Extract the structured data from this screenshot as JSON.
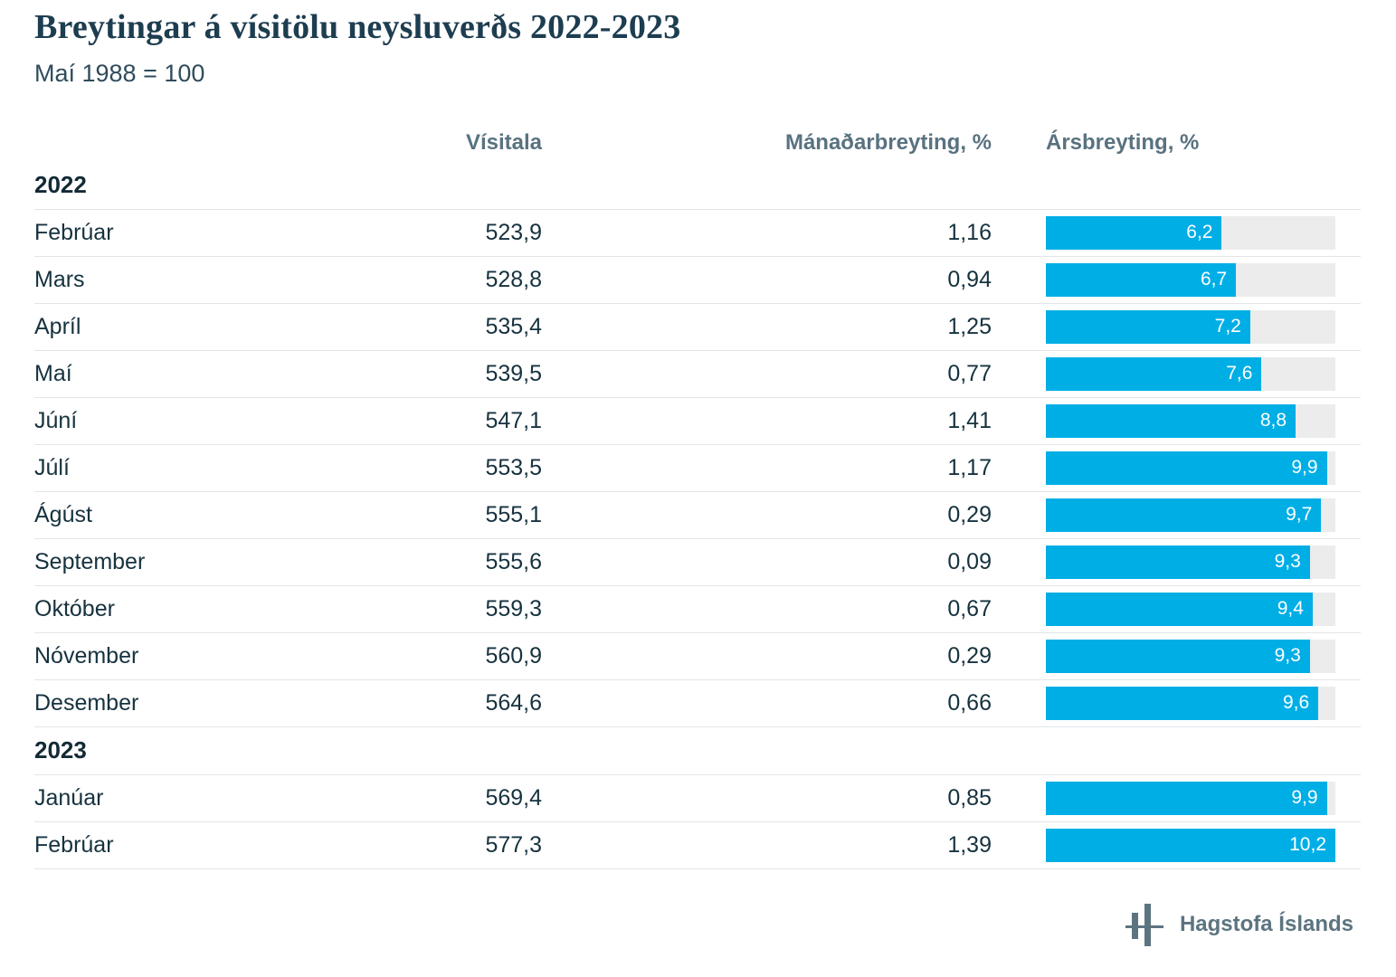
{
  "title": "Breytingar á vísitölu neysluverðs 2022-2023",
  "subtitle": "Maí 1988 = 100",
  "columns": {
    "visitala": "Vísitala",
    "monthly": "Mánaðarbreyting, %",
    "annual": "Ársbreyting, %"
  },
  "bar_scale_max": 10.2,
  "colors": {
    "bar": "#00aee6",
    "bar_track": "#ececec",
    "title_ink": "#1d3d50",
    "header_ink": "#597280",
    "footer_ink": "#5c7480"
  },
  "sections": [
    {
      "year": "2022",
      "rows": [
        {
          "month": "Febrúar",
          "visitala": "523,9",
          "monthly": "1,16",
          "annual": "6,2",
          "annual_value": 6.2
        },
        {
          "month": "Mars",
          "visitala": "528,8",
          "monthly": "0,94",
          "annual": "6,7",
          "annual_value": 6.7
        },
        {
          "month": "Apríl",
          "visitala": "535,4",
          "monthly": "1,25",
          "annual": "7,2",
          "annual_value": 7.2
        },
        {
          "month": "Maí",
          "visitala": "539,5",
          "monthly": "0,77",
          "annual": "7,6",
          "annual_value": 7.6
        },
        {
          "month": "Júní",
          "visitala": "547,1",
          "monthly": "1,41",
          "annual": "8,8",
          "annual_value": 8.8
        },
        {
          "month": "Júlí",
          "visitala": "553,5",
          "monthly": "1,17",
          "annual": "9,9",
          "annual_value": 9.9
        },
        {
          "month": "Ágúst",
          "visitala": "555,1",
          "monthly": "0,29",
          "annual": "9,7",
          "annual_value": 9.7
        },
        {
          "month": "September",
          "visitala": "555,6",
          "monthly": "0,09",
          "annual": "9,3",
          "annual_value": 9.3
        },
        {
          "month": "Október",
          "visitala": "559,3",
          "monthly": "0,67",
          "annual": "9,4",
          "annual_value": 9.4
        },
        {
          "month": "Nóvember",
          "visitala": "560,9",
          "monthly": "0,29",
          "annual": "9,3",
          "annual_value": 9.3
        },
        {
          "month": "Desember",
          "visitala": "564,6",
          "monthly": "0,66",
          "annual": "9,6",
          "annual_value": 9.6
        }
      ]
    },
    {
      "year": "2023",
      "rows": [
        {
          "month": "Janúar",
          "visitala": "569,4",
          "monthly": "0,85",
          "annual": "9,9",
          "annual_value": 9.9
        },
        {
          "month": "Febrúar",
          "visitala": "577,3",
          "monthly": "1,39",
          "annual": "10,2",
          "annual_value": 10.2
        }
      ]
    }
  ],
  "footer": {
    "logo_text": "Hagstofa Íslands"
  },
  "chart_data": {
    "type": "bar",
    "title": "Breytingar á vísitölu neysluverðs 2022-2023",
    "subtitle": "Maí 1988 = 100",
    "orientation": "horizontal",
    "categories": [
      "2022 Febrúar",
      "2022 Mars",
      "2022 Apríl",
      "2022 Maí",
      "2022 Júní",
      "2022 Júlí",
      "2022 Ágúst",
      "2022 September",
      "2022 Október",
      "2022 Nóvember",
      "2022 Desember",
      "2023 Janúar",
      "2023 Febrúar"
    ],
    "series": [
      {
        "name": "Vísitala",
        "values": [
          523.9,
          528.8,
          535.4,
          539.5,
          547.1,
          553.5,
          555.1,
          555.6,
          559.3,
          560.9,
          564.6,
          569.4,
          577.3
        ]
      },
      {
        "name": "Mánaðarbreyting, %",
        "values": [
          1.16,
          0.94,
          1.25,
          0.77,
          1.41,
          1.17,
          0.29,
          0.09,
          0.67,
          0.29,
          0.66,
          0.85,
          1.39
        ]
      },
      {
        "name": "Ársbreyting, %",
        "values": [
          6.2,
          6.7,
          7.2,
          7.6,
          8.8,
          9.9,
          9.7,
          9.3,
          9.4,
          9.3,
          9.6,
          9.9,
          10.2
        ]
      }
    ],
    "bar_series_shown_as_chart": "Ársbreyting, %",
    "xlim": [
      0,
      10.2
    ],
    "grid": false,
    "legend_position": "column-headers",
    "data_labels": true
  }
}
